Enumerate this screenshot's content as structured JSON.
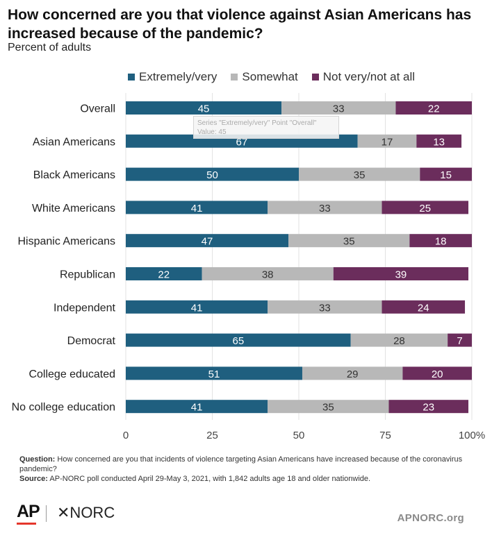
{
  "header": {
    "title": "How concerned are you that violence against Asian Americans has increased because of the pandemic?",
    "subtitle": "Percent of adults"
  },
  "legend": [
    {
      "label": "Extremely/very",
      "color": "#1f5f7f"
    },
    {
      "label": "Somewhat",
      "color": "#b8b8b8"
    },
    {
      "label": "Not very/not at all",
      "color": "#6b2d5c"
    }
  ],
  "tooltip": {
    "line1": "Series \"Extremely/very\" Point \"Overall\"",
    "line2": "Value: 45"
  },
  "footer": {
    "question_label": "Question:",
    "question_text": "How concerned are you that incidents of violence targeting Asian Americans have increased because of the coronavirus pandemic?",
    "source_label": "Source:",
    "source_text": "AP-NORC poll conducted April 29-May 3, 2021, with 1,842 adults age 18 and older nationwide."
  },
  "branding": {
    "ap_logo": "AP",
    "norc_logo": "✕NORC",
    "site": "APNORC.org"
  },
  "chart_data": {
    "type": "bar",
    "orientation": "horizontal",
    "stacked": true,
    "categories": [
      "Overall",
      "Asian Americans",
      "Black Americans",
      "White Americans",
      "Hispanic Americans",
      "Republican",
      "Independent",
      "Democrat",
      "College educated",
      "No college education"
    ],
    "series": [
      {
        "name": "Extremely/very",
        "color": "#1f5f7f",
        "label_color": "#ffffff",
        "values": [
          45,
          67,
          50,
          41,
          47,
          22,
          41,
          65,
          51,
          41
        ]
      },
      {
        "name": "Somewhat",
        "color": "#b8b8b8",
        "label_color": "#333333",
        "values": [
          33,
          17,
          35,
          33,
          35,
          38,
          33,
          28,
          29,
          35
        ]
      },
      {
        "name": "Not very/not at all",
        "color": "#6b2d5c",
        "label_color": "#ffffff",
        "values": [
          22,
          13,
          15,
          25,
          18,
          39,
          24,
          7,
          20,
          23
        ]
      }
    ],
    "xlim": [
      0,
      100
    ],
    "xticks": [
      "0",
      "25",
      "50",
      "75",
      "100%"
    ],
    "grid": true,
    "legend_position": "top"
  }
}
